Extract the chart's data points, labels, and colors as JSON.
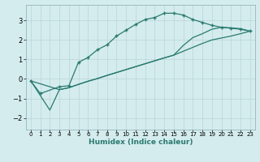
{
  "bg_color": "#d4ecee",
  "grid_color": "#b8d4d8",
  "line_color": "#2a7a6f",
  "xlabel": "Humidex (Indice chaleur)",
  "xlim": [
    -0.5,
    23.5
  ],
  "ylim": [
    -2.6,
    3.8
  ],
  "xticks": [
    0,
    1,
    2,
    3,
    4,
    5,
    6,
    7,
    8,
    9,
    10,
    11,
    12,
    13,
    14,
    15,
    16,
    17,
    18,
    19,
    20,
    21,
    22,
    23
  ],
  "yticks": [
    -2,
    -1,
    0,
    1,
    2,
    3
  ],
  "series": [
    {
      "x": [
        0,
        1,
        3,
        4,
        5,
        6,
        7,
        8,
        9,
        10,
        11,
        12,
        13,
        14,
        15,
        16,
        17,
        18,
        19,
        20,
        21,
        22,
        23
      ],
      "y": [
        -0.1,
        -0.75,
        -0.4,
        -0.35,
        0.85,
        1.1,
        1.5,
        1.75,
        2.2,
        2.5,
        2.8,
        3.05,
        3.15,
        3.37,
        3.37,
        3.28,
        3.05,
        2.9,
        2.75,
        2.65,
        2.6,
        2.55,
        2.45
      ],
      "marker": true
    },
    {
      "x": [
        0,
        2,
        3,
        4,
        5,
        6,
        7,
        8,
        9,
        10,
        11,
        12,
        13,
        14,
        15,
        16,
        17,
        18,
        19,
        20,
        21,
        22,
        23
      ],
      "y": [
        -0.1,
        -1.6,
        -0.55,
        -0.45,
        -0.28,
        -0.12,
        0.02,
        0.18,
        0.33,
        0.48,
        0.63,
        0.78,
        0.93,
        1.08,
        1.22,
        1.42,
        1.62,
        1.82,
        2.0,
        2.1,
        2.2,
        2.32,
        2.45
      ],
      "marker": false
    },
    {
      "x": [
        0,
        3,
        4,
        5,
        6,
        7,
        8,
        9,
        10,
        11,
        12,
        13,
        14,
        15,
        16,
        17,
        18,
        19,
        20,
        21,
        22,
        23
      ],
      "y": [
        -0.1,
        -0.55,
        -0.45,
        -0.28,
        -0.12,
        0.02,
        0.18,
        0.33,
        0.48,
        0.63,
        0.78,
        0.93,
        1.08,
        1.22,
        1.72,
        2.12,
        2.32,
        2.55,
        2.65,
        2.62,
        2.58,
        2.45
      ],
      "marker": false
    }
  ]
}
